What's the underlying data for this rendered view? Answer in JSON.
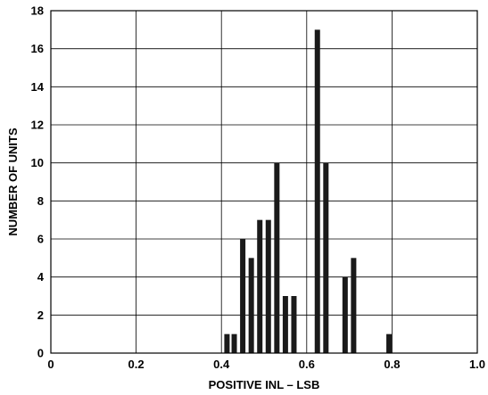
{
  "chart_data": {
    "type": "bar",
    "title": "",
    "xlabel": "POSITIVE INL – LSB",
    "ylabel": "NUMBER OF UNITS",
    "xlim": [
      0,
      1.0
    ],
    "ylim": [
      0,
      18
    ],
    "grid": true,
    "x_ticks": [
      {
        "value": 0,
        "label": "0"
      },
      {
        "value": 0.2,
        "label": "0.2"
      },
      {
        "value": 0.4,
        "label": "0.4"
      },
      {
        "value": 0.6,
        "label": "0.6"
      },
      {
        "value": 0.8,
        "label": "0.8"
      },
      {
        "value": 1.0,
        "label": "1.0"
      }
    ],
    "y_ticks": [
      {
        "value": 0,
        "label": "0"
      },
      {
        "value": 2,
        "label": "2"
      },
      {
        "value": 4,
        "label": "4"
      },
      {
        "value": 6,
        "label": "6"
      },
      {
        "value": 8,
        "label": "8"
      },
      {
        "value": 10,
        "label": "10"
      },
      {
        "value": 12,
        "label": "12"
      },
      {
        "value": 14,
        "label": "14"
      },
      {
        "value": 16,
        "label": "16"
      },
      {
        "value": 18,
        "label": "18"
      }
    ],
    "bar_color": "#1a1a1a",
    "grid_color": "#000000",
    "bars": [
      {
        "x": 0.413,
        "value": 1
      },
      {
        "x": 0.43,
        "value": 1
      },
      {
        "x": 0.45,
        "value": 6
      },
      {
        "x": 0.47,
        "value": 5
      },
      {
        "x": 0.49,
        "value": 7
      },
      {
        "x": 0.51,
        "value": 7
      },
      {
        "x": 0.53,
        "value": 10
      },
      {
        "x": 0.55,
        "value": 3
      },
      {
        "x": 0.57,
        "value": 3
      },
      {
        "x": 0.625,
        "value": 17
      },
      {
        "x": 0.645,
        "value": 10
      },
      {
        "x": 0.69,
        "value": 4
      },
      {
        "x": 0.71,
        "value": 5
      },
      {
        "x": 0.793,
        "value": 1
      }
    ]
  }
}
